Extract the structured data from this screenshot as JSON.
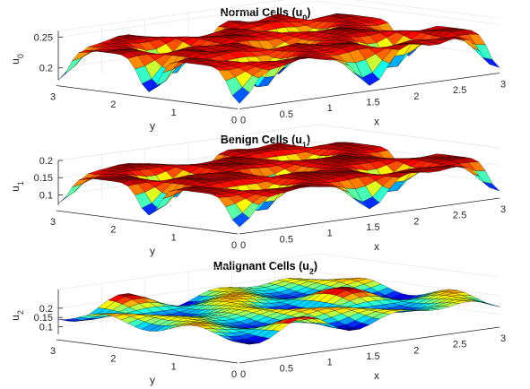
{
  "chart_data": [
    {
      "type": "surface",
      "title": "Normal Cells (u",
      "title_sub": "0",
      "title_close": ")",
      "xlabel": "x",
      "ylabel": "y",
      "zlabel": "u",
      "zlabel_sub": "0",
      "xlim": [
        0,
        3
      ],
      "ylim": [
        0,
        3
      ],
      "zlim": [
        0.18,
        0.26
      ],
      "xticks": [
        "0",
        "0.5",
        "1",
        "1.5",
        "2",
        "2.5",
        "3"
      ],
      "yticks": [
        "0",
        "1",
        "2",
        "3"
      ],
      "zticks": [
        "0.2",
        "0.25"
      ],
      "ztick_values": [
        0.2,
        0.25
      ],
      "z_base": 0.235,
      "z_amp": 0.055,
      "pattern": "dips",
      "colormap": "jet",
      "grid": true
    },
    {
      "type": "surface",
      "title": "Benign Cells (u",
      "title_sub": "1",
      "title_close": ")",
      "xlabel": "x",
      "ylabel": "y",
      "zlabel": "u",
      "zlabel_sub": "1",
      "xlim": [
        0,
        3
      ],
      "ylim": [
        0,
        3
      ],
      "zlim": [
        0.07,
        0.2
      ],
      "xticks": [
        "0",
        "0.5",
        "1",
        "1.5",
        "2",
        "2.5",
        "3"
      ],
      "yticks": [
        "0",
        "1",
        "2",
        "3"
      ],
      "zticks": [
        "0.1",
        "0.15",
        "0.2"
      ],
      "ztick_values": [
        0.1,
        0.15,
        0.2
      ],
      "z_base": 0.16,
      "z_amp": 0.085,
      "pattern": "dips",
      "colormap": "jet",
      "grid": true
    },
    {
      "type": "surface",
      "title": "Malignant Cells (u",
      "title_sub": "2",
      "title_close": ")",
      "xlabel": "x",
      "ylabel": "y",
      "zlabel": "u",
      "zlabel_sub": "2",
      "xlim": [
        0,
        3
      ],
      "ylim": [
        0,
        3
      ],
      "zlim": [
        0.06,
        0.3
      ],
      "xticks": [
        "0",
        "0.5",
        "1",
        "1.5",
        "2",
        "2.5",
        "3"
      ],
      "yticks": [
        "0",
        "1",
        "2",
        "3"
      ],
      "zticks": [
        "0.1",
        "0.15",
        "0.2"
      ],
      "ztick_values": [
        0.1,
        0.15,
        0.2
      ],
      "z_base": 0.17,
      "z_amp": 0.12,
      "pattern": "waves",
      "colormap": "jet",
      "grid": true
    }
  ]
}
